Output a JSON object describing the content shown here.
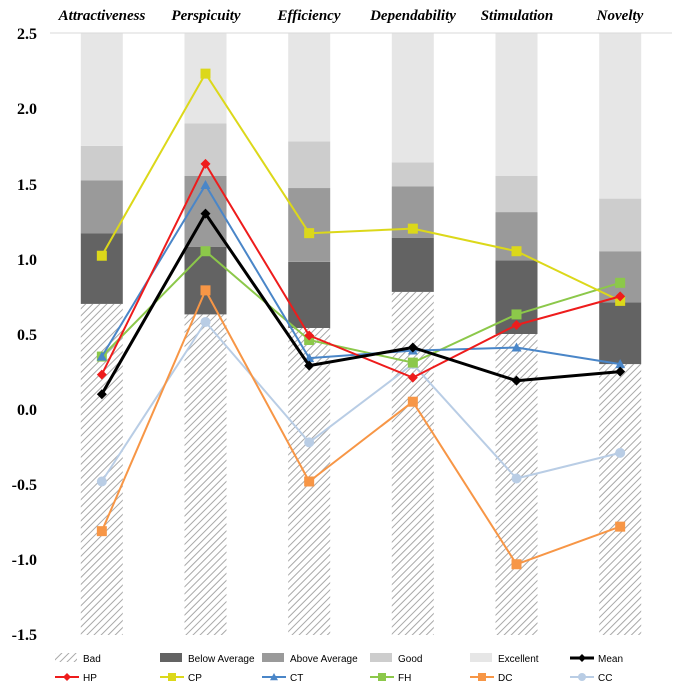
{
  "chart_data": {
    "type": "bar",
    "categories": [
      "Attractiveness",
      "Perspicuity",
      "Efficiency",
      "Dependability",
      "Stimulation",
      "Novelty"
    ],
    "ylim": [
      -1.5,
      2.5
    ],
    "yticks": [
      "2.5",
      "2.0",
      "1.5",
      "1.0",
      "0.5",
      "0.0",
      "-0.5",
      "-1.0",
      "-1.5"
    ],
    "ytick_values": [
      2.5,
      2.0,
      1.5,
      1.0,
      0.5,
      0.0,
      -0.5,
      -1.0,
      -1.5
    ],
    "grid": false,
    "legend_position": "bottom",
    "benchmark": {
      "names": [
        "Bad",
        "Below Average",
        "Above Average",
        "Good",
        "Excellent"
      ],
      "colors": [
        "hatch",
        "#636363",
        "#9a9a9a",
        "#cdcdcd",
        "#e6e6e6"
      ],
      "boundaries": [
        [
          0.7,
          1.17,
          1.52,
          1.75,
          2.5
        ],
        [
          0.63,
          1.08,
          1.55,
          1.9,
          2.5
        ],
        [
          0.54,
          0.98,
          1.47,
          1.78,
          2.5
        ],
        [
          0.78,
          1.14,
          1.48,
          1.64,
          2.5
        ],
        [
          0.5,
          0.99,
          1.31,
          1.55,
          2.5
        ],
        [
          0.3,
          0.71,
          1.05,
          1.4,
          2.5
        ]
      ]
    },
    "series": [
      {
        "name": "Mean",
        "color": "#000000",
        "marker": "diamond",
        "values": [
          0.1,
          1.3,
          0.29,
          0.41,
          0.19,
          0.25
        ]
      },
      {
        "name": "HP",
        "color": "#ee1c1c",
        "marker": "diamond",
        "values": [
          0.23,
          1.63,
          0.49,
          0.21,
          0.56,
          0.75
        ]
      },
      {
        "name": "CP",
        "color": "#dcd81a",
        "marker": "square",
        "values": [
          1.02,
          2.23,
          1.17,
          1.2,
          1.05,
          0.72
        ]
      },
      {
        "name": "CT",
        "color": "#4a86c8",
        "marker": "triangle",
        "values": [
          0.35,
          1.49,
          0.34,
          0.39,
          0.41,
          0.3
        ]
      },
      {
        "name": "FH",
        "color": "#8cc84a",
        "marker": "square",
        "values": [
          0.35,
          1.05,
          0.46,
          0.31,
          0.63,
          0.84
        ]
      },
      {
        "name": "DC",
        "color": "#f79646",
        "marker": "square",
        "values": [
          -0.81,
          0.79,
          -0.48,
          0.05,
          -1.03,
          -0.78
        ]
      },
      {
        "name": "CC",
        "color": "#b9cde5",
        "marker": "circle",
        "values": [
          -0.48,
          0.58,
          -0.22,
          0.3,
          -0.46,
          -0.29
        ]
      }
    ]
  }
}
